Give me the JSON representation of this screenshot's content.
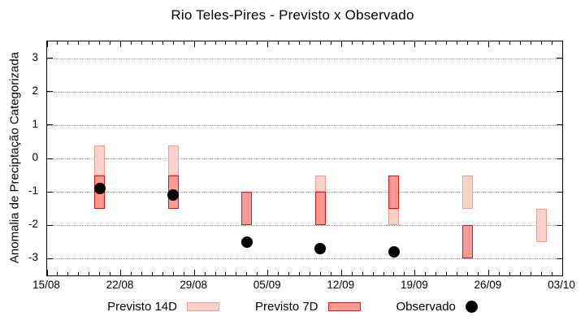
{
  "chart_data": {
    "type": "bar",
    "title": "Rio Teles-Pires - Previsto x Observado",
    "ylabel": "Anomalia de Preciptação Categorizada",
    "xlabel": "",
    "ylim": [
      -3.5,
      3.5
    ],
    "y_ticks": [
      3,
      2,
      1,
      0,
      -1,
      -2,
      -3
    ],
    "x_span_days": 49,
    "x_major_tick_every_days": 7,
    "x_minor_tick_every_days": 1,
    "x_tick_labels": [
      "15/08",
      "22/08",
      "29/08",
      "05/09",
      "12/09",
      "19/09",
      "26/09",
      "03/10"
    ],
    "grid": "horizontal dotted gray at integer y values",
    "legend_position": "bottom-center",
    "colors": {
      "previsto14_fill": "#fbd2ca",
      "previsto14_border": "#f59a8c",
      "previsto7_fill": "#fd9a93",
      "previsto7_border": "#e31414",
      "observado": "#000000",
      "grid": "#999999",
      "axis": "#000000"
    },
    "series": [
      {
        "name": "Previsto 14D",
        "type": "range-bar",
        "points": [
          {
            "day": 5,
            "date": "20/08",
            "from": -0.5,
            "to": 0.4
          },
          {
            "day": 12,
            "date": "27/08",
            "from": -0.5,
            "to": 0.4
          },
          {
            "day": 26,
            "date": "10/09",
            "from": -1.0,
            "to": -0.5
          },
          {
            "day": 33,
            "date": "17/09",
            "from": -2.0,
            "to": -1.5
          },
          {
            "day": 40,
            "date": "24/09",
            "from": -1.5,
            "to": -0.5
          },
          {
            "day": 47,
            "date": "01/10",
            "from": -2.5,
            "to": -1.5
          }
        ]
      },
      {
        "name": "Previsto 7D",
        "type": "range-bar",
        "points": [
          {
            "day": 5,
            "date": "20/08",
            "from": -1.5,
            "to": -0.5
          },
          {
            "day": 12,
            "date": "27/08",
            "from": -1.5,
            "to": -0.5
          },
          {
            "day": 19,
            "date": "03/09",
            "from": -2.0,
            "to": -1.0
          },
          {
            "day": 26,
            "date": "10/09",
            "from": -2.0,
            "to": -1.0
          },
          {
            "day": 33,
            "date": "17/09",
            "from": -1.5,
            "to": -0.5
          },
          {
            "day": 40,
            "date": "24/09",
            "from": -3.0,
            "to": -2.0
          }
        ]
      },
      {
        "name": "Observado",
        "type": "scatter",
        "points": [
          {
            "day": 5,
            "date": "20/08",
            "value": -0.9
          },
          {
            "day": 12,
            "date": "27/08",
            "value": -1.1
          },
          {
            "day": 19,
            "date": "03/09",
            "value": -2.5
          },
          {
            "day": 26,
            "date": "10/09",
            "value": -2.7
          },
          {
            "day": 33,
            "date": "17/09",
            "value": -2.8
          }
        ]
      }
    ],
    "legend": [
      {
        "label": "Previsto 14D",
        "swatch": "box-light"
      },
      {
        "label": "Previsto 7D",
        "swatch": "box-dark"
      },
      {
        "label": "Observado",
        "swatch": "dot"
      }
    ]
  }
}
